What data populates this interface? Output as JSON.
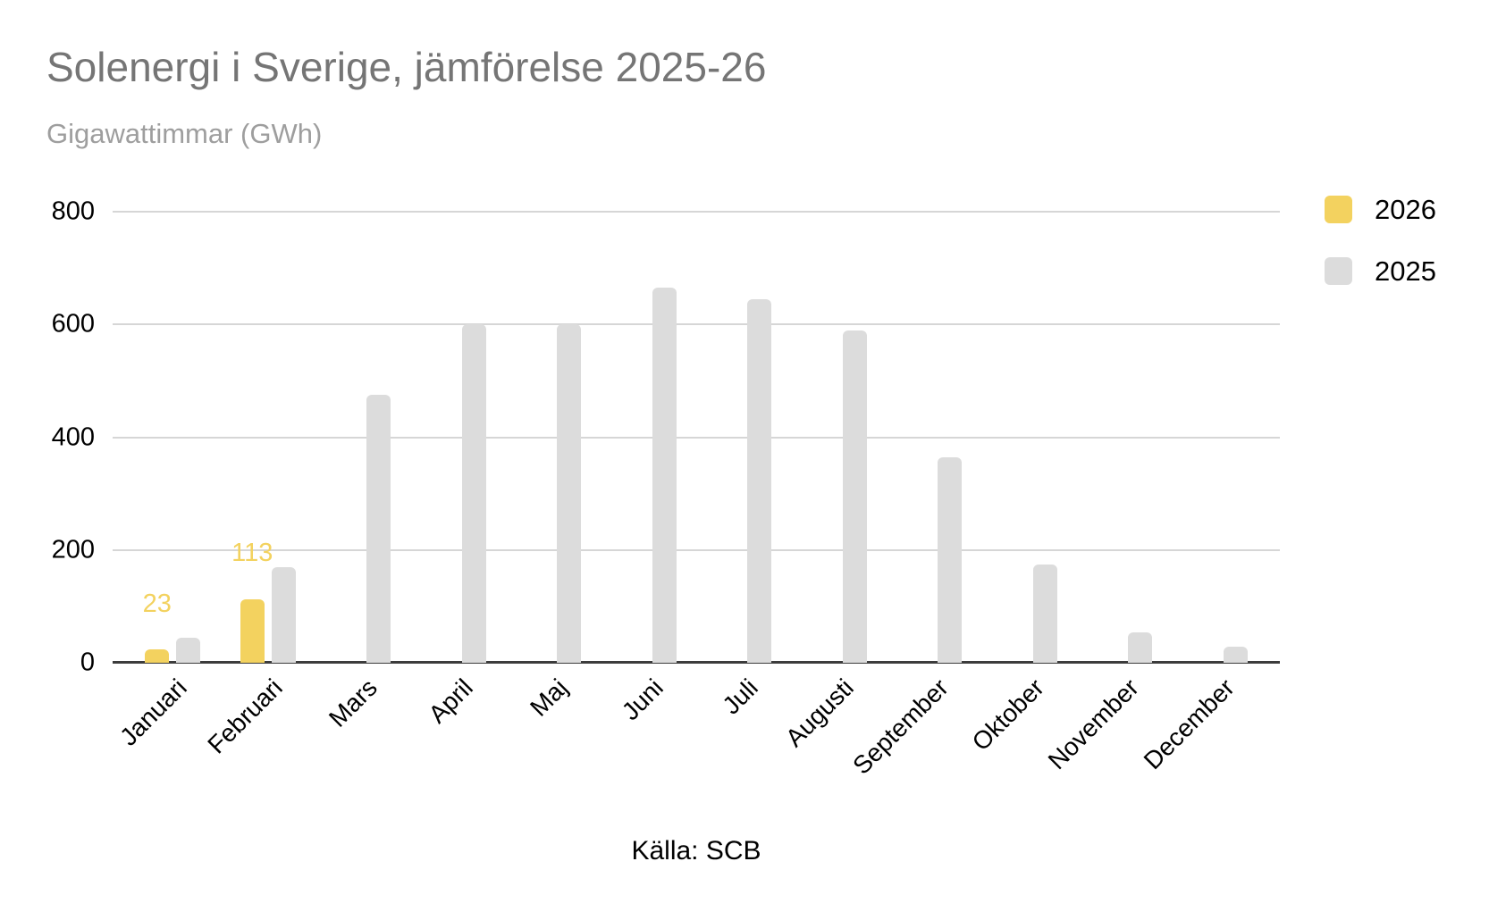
{
  "title": "Solenergi i Sverige, jämförelse 2025-26",
  "subtitle": "Gigawattimmar (GWh)",
  "source": "Källa: SCB",
  "legend": {
    "position": "top-right",
    "items": [
      {
        "label": "2026",
        "color": "#f3d25f"
      },
      {
        "label": "2025",
        "color": "#dcdcdc"
      }
    ]
  },
  "chart_data": {
    "type": "bar",
    "title": "Solenergi i Sverige, jämförelse 2025-26",
    "subtitle": "Gigawattimmar (GWh)",
    "xlabel": "",
    "ylabel": "Gigawattimmar (GWh)",
    "categories": [
      "Januari",
      "Februari",
      "Mars",
      "April",
      "Maj",
      "Juni",
      "Juli",
      "Augusti",
      "September",
      "Oktober",
      "November",
      "December"
    ],
    "series": [
      {
        "name": "2026",
        "color": "#f3d25f",
        "data_labels": true,
        "values": [
          23,
          113,
          null,
          null,
          null,
          null,
          null,
          null,
          null,
          null,
          null,
          null
        ]
      },
      {
        "name": "2025",
        "color": "#dcdcdc",
        "data_labels": false,
        "values": [
          45,
          170,
          475,
          600,
          600,
          665,
          645,
          590,
          365,
          175,
          54,
          28
        ]
      }
    ],
    "ylim": [
      0,
      800
    ],
    "y_ticks": [
      0,
      200,
      400,
      600,
      800
    ],
    "grid": true,
    "legend_position": "top-right",
    "source": "Källa: SCB"
  },
  "colors": {
    "background": "#ffffff",
    "title": "#757575",
    "subtitle": "#9e9e9e",
    "gridline": "#d6d6d6",
    "axis_line": "#3c3c3c",
    "tick_label": "#000000",
    "series_2026": "#f3d25f",
    "series_2025": "#dcdcdc"
  }
}
